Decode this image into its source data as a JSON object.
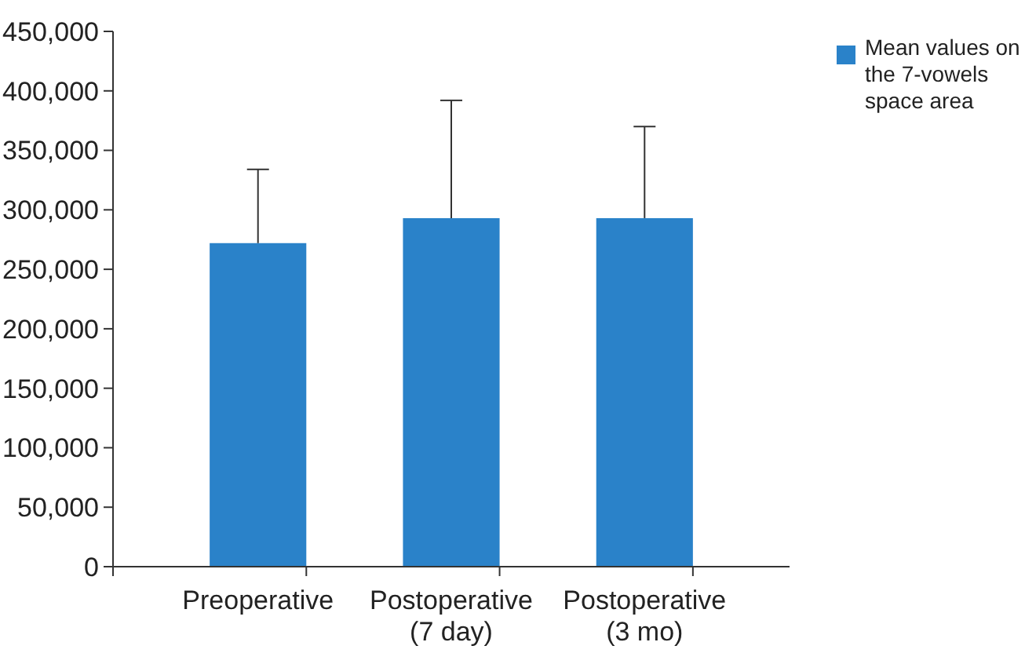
{
  "chart_data": {
    "type": "bar",
    "categories": [
      "Preoperative",
      "Postoperative (7 day)",
      "Postoperative (3 mo)"
    ],
    "series": [
      {
        "name": "Mean values on the 7-vowels space area",
        "color": "#2a82c9",
        "values": [
          272000,
          293000,
          293000
        ],
        "errors": [
          [
            272000,
            334000
          ],
          [
            293000,
            392000
          ],
          [
            293000,
            370000
          ]
        ]
      }
    ],
    "ylim": [
      0,
      450000
    ],
    "yticks": [
      {
        "value": 0,
        "label": "0"
      },
      {
        "value": 50000,
        "label": "50,000"
      },
      {
        "value": 100000,
        "label": "100,000"
      },
      {
        "value": 150000,
        "label": "150,000"
      },
      {
        "value": 200000,
        "label": "200,000"
      },
      {
        "value": 250000,
        "label": "250,000"
      },
      {
        "value": 300000,
        "label": "300,000"
      },
      {
        "value": 350000,
        "label": "350,000"
      },
      {
        "value": 400000,
        "label": "400,000"
      },
      {
        "value": 450000,
        "label": "450,000"
      }
    ],
    "grid": false,
    "legend": "top right"
  }
}
